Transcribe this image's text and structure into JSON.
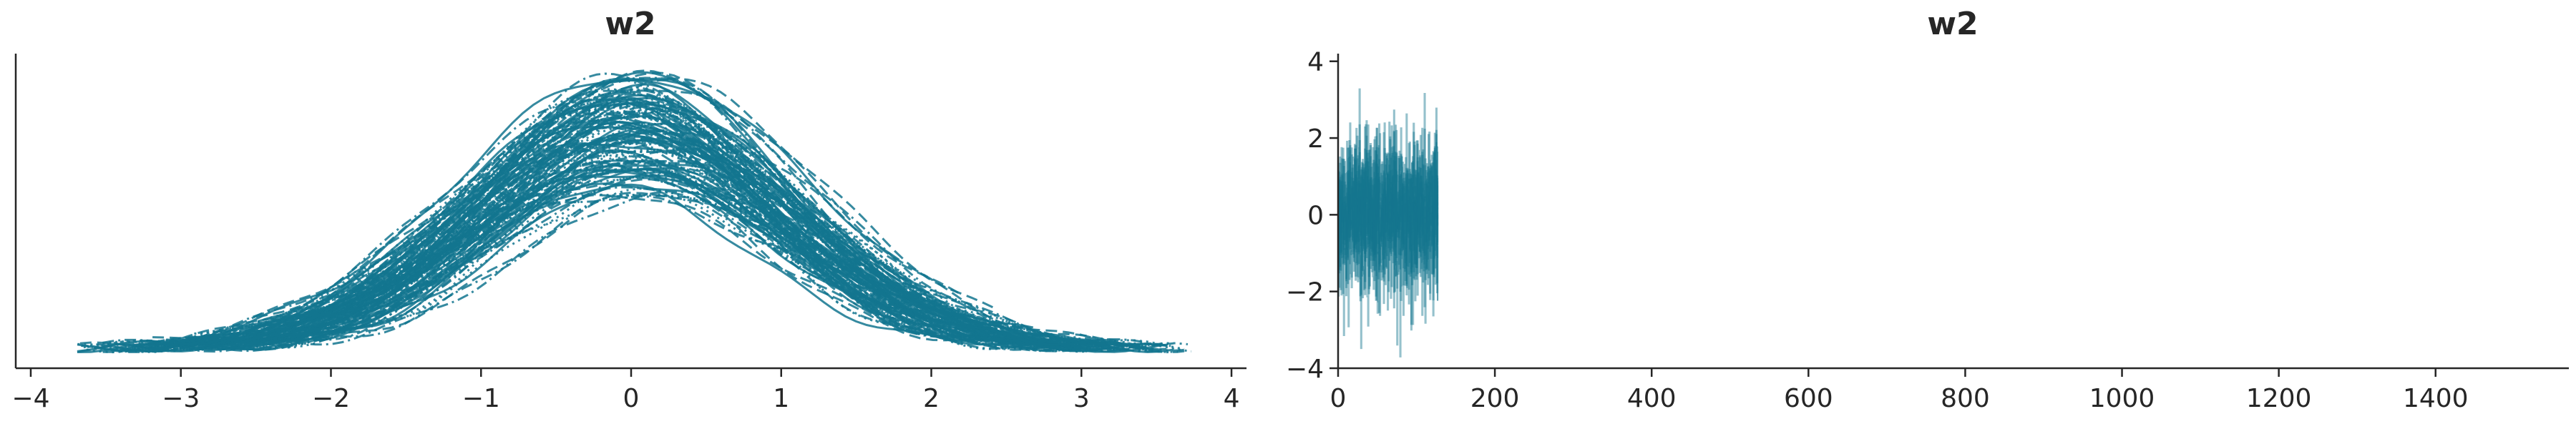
{
  "chart_data": [
    {
      "type": "line",
      "title": "w2",
      "xlabel": "",
      "ylabel": "",
      "xlim": [
        -4.1,
        4.1
      ],
      "xticks": [
        -4,
        -3,
        -2,
        -1,
        0,
        1,
        2,
        3,
        4
      ],
      "yticks": [],
      "grid": false,
      "legend": "none",
      "line_styles": [
        "solid",
        "dashed",
        "dotted",
        "dashdot"
      ],
      "series_summary": {
        "count": 128,
        "x_range": [
          -3.7,
          3.75
        ],
        "peak_x": 0,
        "density_peak_range": [
          0.5,
          0.95
        ]
      },
      "color": "#13768f"
    },
    {
      "type": "line",
      "title": "w2",
      "xlabel": "",
      "ylabel": "",
      "xlim": [
        0,
        1570
      ],
      "ylim": [
        -4,
        4.2
      ],
      "xticks": [
        0,
        200,
        400,
        600,
        800,
        1000,
        1200,
        1400
      ],
      "yticks": [
        -4,
        -2,
        0,
        2,
        4
      ],
      "grid": false,
      "legend": "none",
      "series_summary": {
        "draws": 128,
        "value_range": [
          -3.7,
          3.8
        ],
        "mean": 0,
        "spread": "approximately standard normal"
      },
      "color": "#13768f"
    }
  ]
}
